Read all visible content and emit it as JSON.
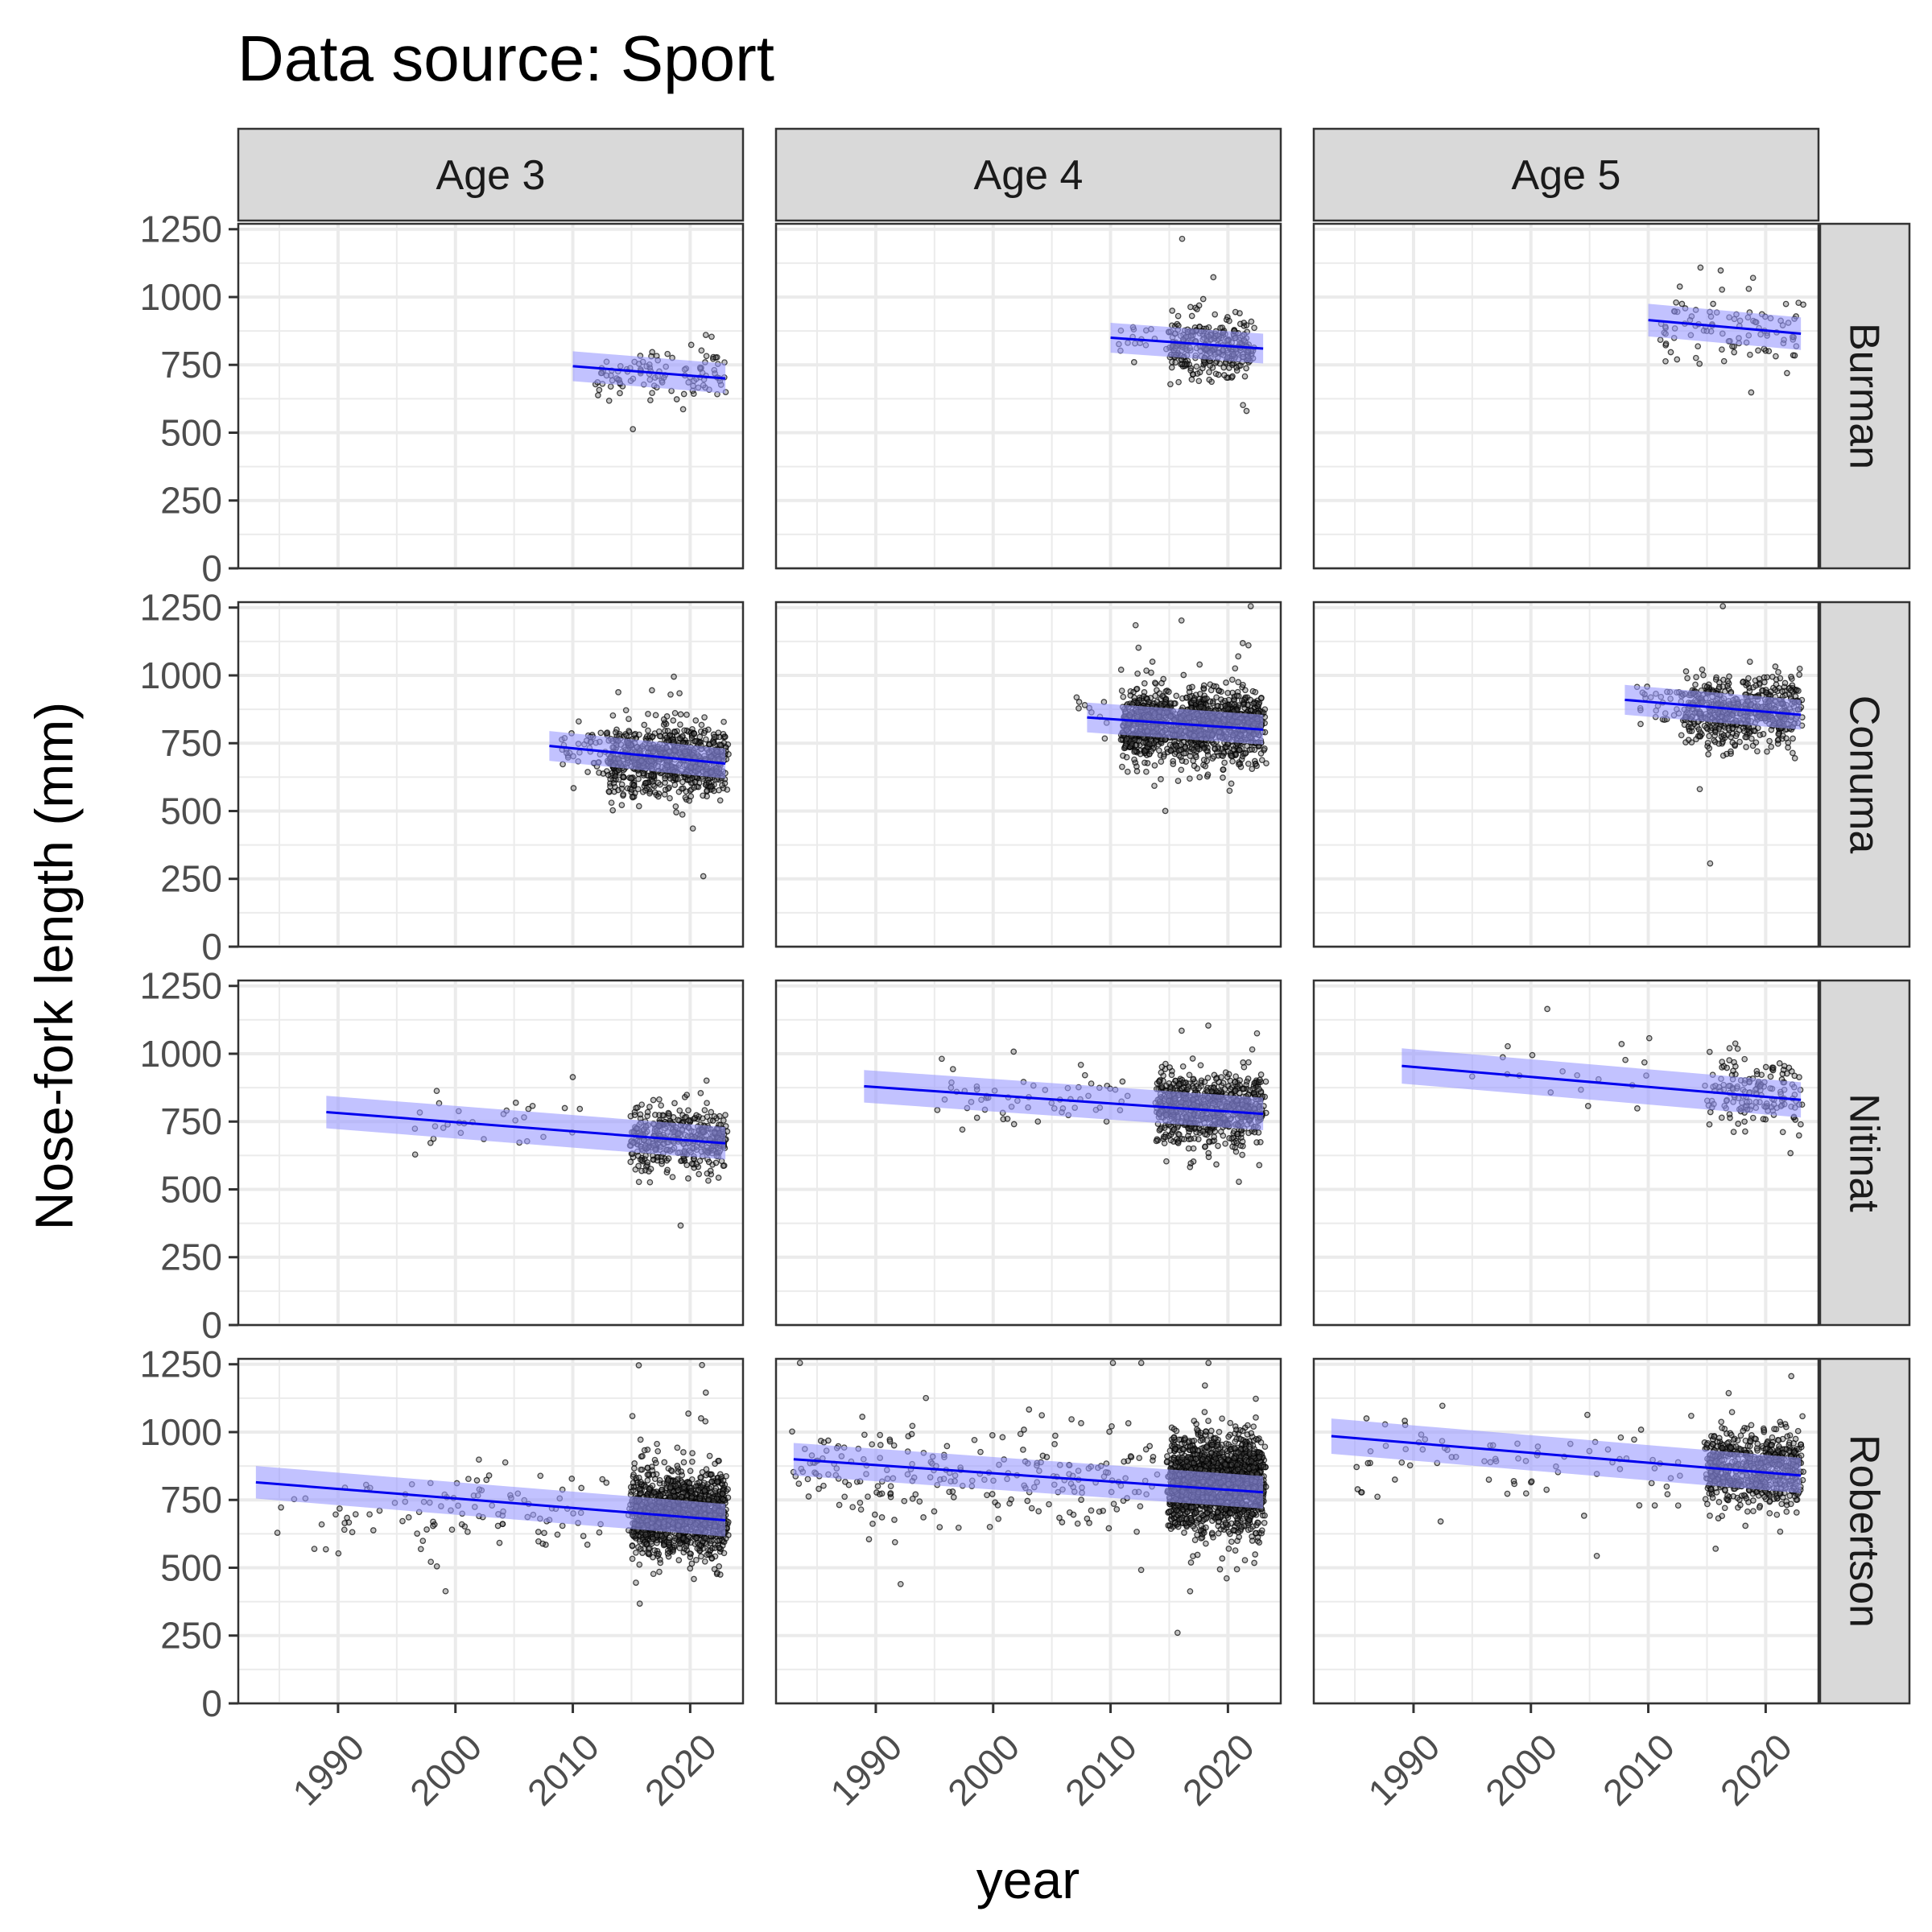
{
  "title": "Data source: Sport",
  "axes": {
    "xlabel": "year",
    "ylabel": "Nose-fork length (mm)",
    "xlim": [
      1981.5,
      2024.5
    ],
    "ylim": [
      0,
      1270
    ],
    "xticks": [
      1990,
      2000,
      2010,
      2020
    ],
    "yticks": [
      0,
      250,
      500,
      750,
      1000,
      1250
    ]
  },
  "colors": {
    "fit_line": "#0000ee",
    "ribbon": "#9999ff",
    "points": "#000000",
    "strip_bg": "#d9d9d9",
    "grid": "#ebebeb"
  },
  "chart_data": {
    "type": "scatter",
    "facets": {
      "cols": [
        "Age 3",
        "Age 4",
        "Age 5"
      ],
      "rows": [
        "Burman",
        "Conuma",
        "Nitinat",
        "Robertson"
      ]
    },
    "panels": [
      {
        "row": "Burman",
        "col": "Age 3",
        "fit": {
          "x0": 2010,
          "x1": 2023,
          "y0": 745,
          "y1": 700,
          "band": 55
        },
        "clusters": [
          {
            "x0": 2012,
            "x1": 2023,
            "mean": 715,
            "sd": 50,
            "n": 110
          }
        ]
      },
      {
        "row": "Burman",
        "col": "Age 4",
        "fit": {
          "x0": 2010,
          "x1": 2023,
          "y0": 850,
          "y1": 810,
          "band": 55
        },
        "clusters": [
          {
            "x0": 2010,
            "x1": 2014,
            "mean": 850,
            "sd": 40,
            "n": 15
          },
          {
            "x0": 2015,
            "x1": 2022,
            "mean": 815,
            "sd": 55,
            "n": 320
          }
        ]
      },
      {
        "row": "Burman",
        "col": "Age 5",
        "fit": {
          "x0": 2010,
          "x1": 2023,
          "y0": 915,
          "y1": 865,
          "band": 60
        },
        "clusters": [
          {
            "x0": 2011,
            "x1": 2023,
            "mean": 880,
            "sd": 60,
            "n": 100
          }
        ]
      },
      {
        "row": "Conuma",
        "col": "Age 3",
        "fit": {
          "x0": 2008,
          "x1": 2023,
          "y0": 740,
          "y1": 675,
          "band": 55
        },
        "clusters": [
          {
            "x0": 2009,
            "x1": 2013,
            "mean": 735,
            "sd": 55,
            "n": 40
          },
          {
            "x0": 2013,
            "x1": 2023,
            "mean": 690,
            "sd": 65,
            "n": 800
          }
        ]
      },
      {
        "row": "Conuma",
        "col": "Age 4",
        "fit": {
          "x0": 2008,
          "x1": 2023,
          "y0": 845,
          "y1": 800,
          "band": 55
        },
        "clusters": [
          {
            "x0": 2007,
            "x1": 2010,
            "mean": 850,
            "sd": 40,
            "n": 10
          },
          {
            "x0": 2011,
            "x1": 2023,
            "mean": 815,
            "sd": 65,
            "n": 1300
          }
        ]
      },
      {
        "row": "Conuma",
        "col": "Age 5",
        "fit": {
          "x0": 2008,
          "x1": 2023,
          "y0": 910,
          "y1": 855,
          "band": 55
        },
        "clusters": [
          {
            "x0": 2009,
            "x1": 2013,
            "mean": 905,
            "sd": 50,
            "n": 30
          },
          {
            "x0": 2013,
            "x1": 2023,
            "mean": 870,
            "sd": 60,
            "n": 600
          }
        ]
      },
      {
        "row": "Nitinat",
        "col": "Age 3",
        "fit": {
          "x0": 1989,
          "x1": 2023,
          "y0": 785,
          "y1": 670,
          "band": 60
        },
        "clusters": [
          {
            "x0": 1996,
            "x1": 2012,
            "mean": 730,
            "sd": 60,
            "n": 30
          },
          {
            "x0": 2015,
            "x1": 2023,
            "mean": 690,
            "sd": 60,
            "n": 420
          }
        ]
      },
      {
        "row": "Nitinat",
        "col": "Age 4",
        "fit": {
          "x0": 1989,
          "x1": 2023,
          "y0": 880,
          "y1": 778,
          "band": 60
        },
        "clusters": [
          {
            "x0": 1995,
            "x1": 2012,
            "mean": 850,
            "sd": 65,
            "n": 60
          },
          {
            "x0": 2014,
            "x1": 2023,
            "mean": 800,
            "sd": 65,
            "n": 750
          }
        ]
      },
      {
        "row": "Nitinat",
        "col": "Age 5",
        "fit": {
          "x0": 1989,
          "x1": 2023,
          "y0": 955,
          "y1": 830,
          "band": 65
        },
        "clusters": [
          {
            "x0": 1995,
            "x1": 2010,
            "mean": 925,
            "sd": 60,
            "n": 20
          },
          {
            "x0": 2015,
            "x1": 2023,
            "mean": 855,
            "sd": 65,
            "n": 160
          }
        ]
      },
      {
        "row": "Robertson",
        "col": "Age 3",
        "fit": {
          "x0": 1983,
          "x1": 2023,
          "y0": 815,
          "y1": 675,
          "band": 60
        },
        "clusters": [
          {
            "x0": 1985,
            "x1": 2013,
            "mean": 710,
            "sd": 80,
            "n": 110
          },
          {
            "x0": 2015,
            "x1": 2023,
            "mean": 700,
            "sd": 75,
            "n": 1300
          }
        ]
      },
      {
        "row": "Robertson",
        "col": "Age 4",
        "fit": {
          "x0": 1983,
          "x1": 2023,
          "y0": 900,
          "y1": 778,
          "band": 60
        },
        "clusters": [
          {
            "x0": 1983,
            "x1": 2014,
            "mean": 840,
            "sd": 95,
            "n": 240
          },
          {
            "x0": 2015,
            "x1": 2023,
            "mean": 810,
            "sd": 85,
            "n": 1700
          }
        ]
      },
      {
        "row": "Robertson",
        "col": "Age 5",
        "fit": {
          "x0": 1983,
          "x1": 2023,
          "y0": 985,
          "y1": 840,
          "band": 65
        },
        "clusters": [
          {
            "x0": 1985,
            "x1": 2014,
            "mean": 900,
            "sd": 90,
            "n": 80
          },
          {
            "x0": 2015,
            "x1": 2023,
            "mean": 860,
            "sd": 70,
            "n": 650
          }
        ]
      }
    ]
  }
}
